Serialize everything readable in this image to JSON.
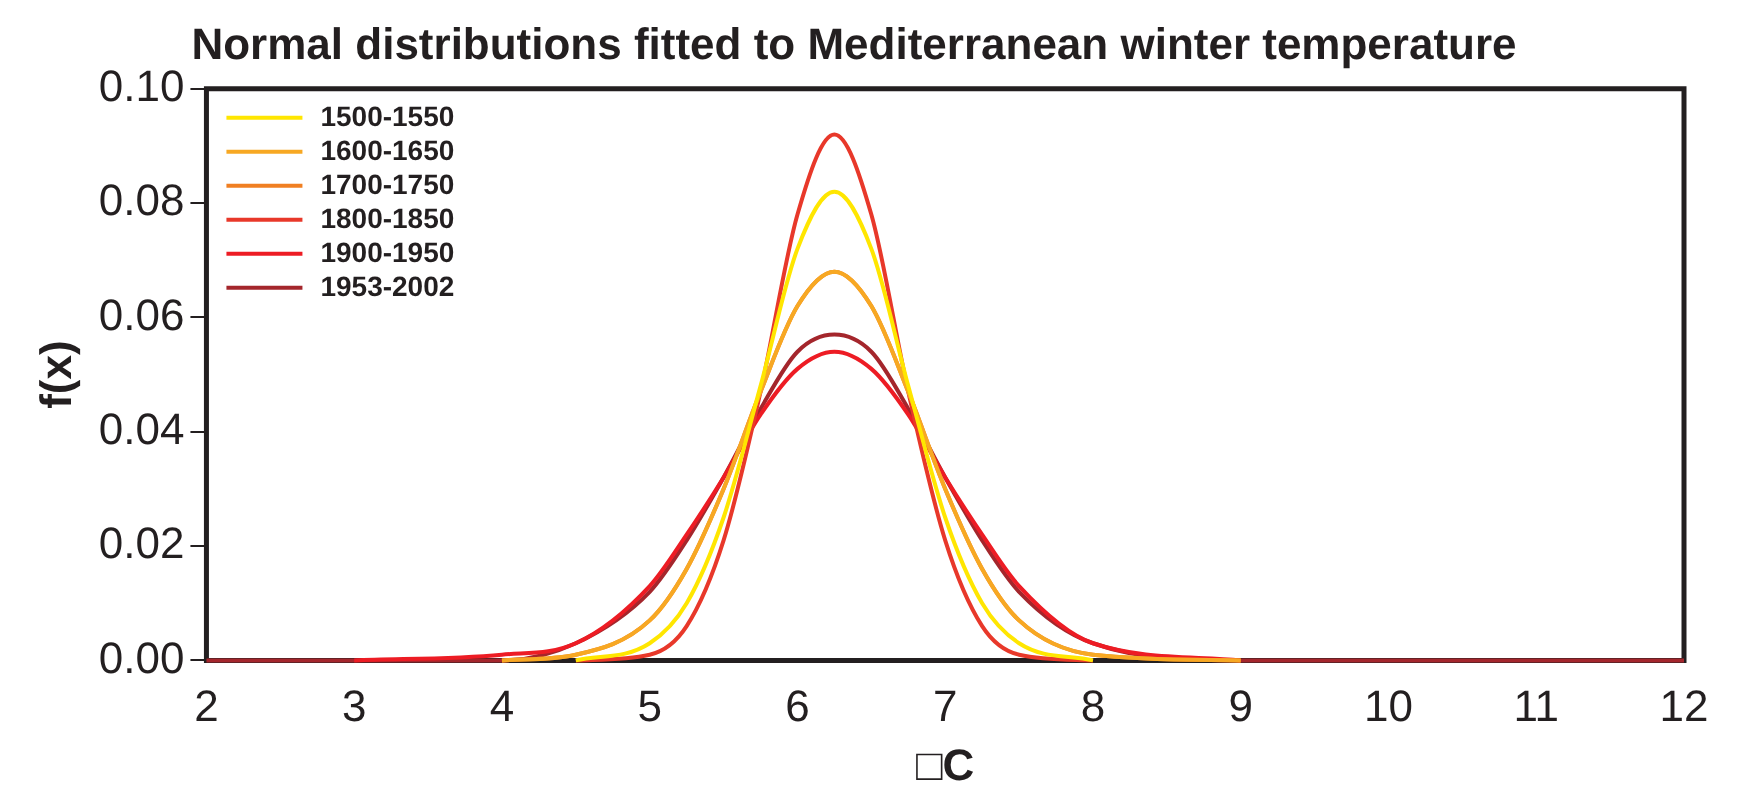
{
  "chart_data": {
    "type": "line",
    "title": "Normal distributions fitted to Mediterranean winter temperature",
    "xlabel": "□C",
    "ylabel": "f(x)",
    "x": [
      2,
      3,
      4,
      4.5,
      5,
      5.25,
      5.5,
      5.75,
      6,
      6.25,
      6.5,
      6.75,
      7,
      7.25,
      7.5,
      8,
      9,
      10,
      11,
      12
    ],
    "series": [
      {
        "name": "1500-1550",
        "color": "#ffe600",
        "values": [
          null,
          null,
          null,
          0,
          0.003,
          0.01,
          0.025,
          0.048,
          0.072,
          0.082,
          0.072,
          0.048,
          0.025,
          0.01,
          0.003,
          0,
          null,
          null,
          null,
          null
        ]
      },
      {
        "name": "1600-1650",
        "color": "#f7a823",
        "values": [
          null,
          null,
          0,
          0.001,
          0.007,
          0.016,
          0.03,
          0.047,
          0.062,
          0.068,
          0.062,
          0.047,
          0.03,
          0.016,
          0.007,
          0.001,
          0,
          null,
          null,
          null
        ]
      },
      {
        "name": "1700-1750",
        "color": "#f07f22",
        "values": [
          null,
          null,
          0,
          0.001,
          0.007,
          0.016,
          0.03,
          0.047,
          0.062,
          0.068,
          0.062,
          0.047,
          0.03,
          0.016,
          0.007,
          0.001,
          0,
          null,
          null,
          null
        ]
      },
      {
        "name": "1800-1850",
        "color": "#e8382a",
        "values": [
          null,
          null,
          null,
          0,
          0.001,
          0.006,
          0.021,
          0.047,
          0.078,
          0.092,
          0.078,
          0.047,
          0.021,
          0.006,
          0.001,
          0,
          null,
          null,
          null,
          null
        ]
      },
      {
        "name": "1900-1950",
        "color": "#ed1c24",
        "values": [
          null,
          0,
          0.001,
          0.003,
          0.013,
          0.022,
          0.032,
          0.043,
          0.051,
          0.054,
          0.051,
          0.043,
          0.032,
          0.022,
          0.013,
          0.003,
          0,
          null,
          null,
          null
        ]
      },
      {
        "name": "1953-2002",
        "color": "#a4262c",
        "values": [
          0,
          0,
          0,
          0.003,
          0.012,
          0.021,
          0.032,
          0.044,
          0.054,
          0.057,
          0.054,
          0.044,
          0.032,
          0.021,
          0.012,
          0.003,
          0,
          0,
          0,
          0
        ]
      }
    ],
    "xlim": [
      2,
      12
    ],
    "xticks": [
      2,
      3,
      4,
      5,
      6,
      7,
      8,
      9,
      10,
      11,
      12
    ],
    "ylim": [
      0,
      0.1
    ],
    "yticks": [
      {
        "value": 0,
        "label": "0.00"
      },
      {
        "value": 0.02,
        "label": "0.02"
      },
      {
        "value": 0.04,
        "label": "0.04"
      },
      {
        "value": 0.06,
        "label": "0.06"
      },
      {
        "value": 0.08,
        "label": "0.08"
      },
      {
        "value": 0.1,
        "label": "0.10"
      }
    ],
    "legend": "top left",
    "grid": false,
    "marker": "none",
    "line_style": "solid"
  }
}
